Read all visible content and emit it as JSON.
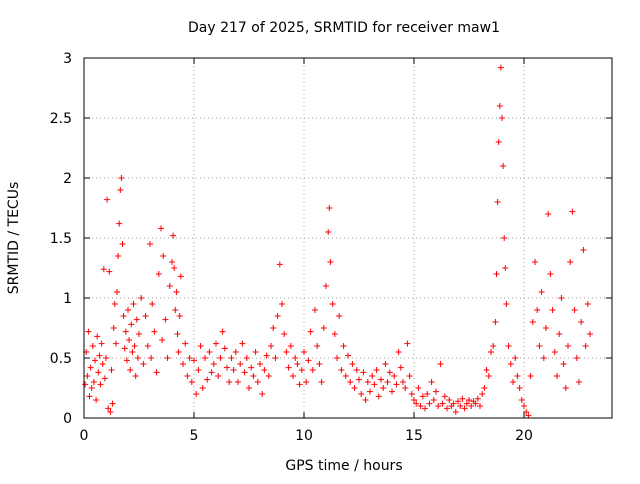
{
  "chart_data": {
    "type": "scatter",
    "title": "Day 217 of 2025, SRMTID for receiver maw1",
    "xlabel": "GPS time / hours",
    "ylabel": "SRMTID / TECUs",
    "xlim": [
      0,
      24
    ],
    "ylim": [
      0,
      3
    ],
    "xticks": [
      "0",
      "5",
      "10",
      "15",
      "20"
    ],
    "xtick_values": [
      0,
      5,
      10,
      15,
      20
    ],
    "yticks": [
      "0",
      "0.5",
      "1",
      "1.5",
      "2",
      "2.5",
      "3"
    ],
    "ytick_values": [
      0,
      0.5,
      1,
      1.5,
      2,
      2.5,
      3
    ],
    "grid": true,
    "marker": "+",
    "color": "#ff0000",
    "series": [
      {
        "name": "SRMTID",
        "points": [
          [
            0.05,
            0.28
          ],
          [
            0.1,
            0.55
          ],
          [
            0.15,
            0.35
          ],
          [
            0.2,
            0.72
          ],
          [
            0.25,
            0.18
          ],
          [
            0.3,
            0.42
          ],
          [
            0.35,
            0.25
          ],
          [
            0.4,
            0.6
          ],
          [
            0.45,
            0.3
          ],
          [
            0.5,
            0.48
          ],
          [
            0.55,
            0.15
          ],
          [
            0.6,
            0.68
          ],
          [
            0.65,
            0.38
          ],
          [
            0.7,
            0.52
          ],
          [
            0.75,
            0.28
          ],
          [
            0.8,
            0.62
          ],
          [
            0.85,
            0.45
          ],
          [
            0.9,
            1.24
          ],
          [
            0.95,
            0.33
          ],
          [
            1.0,
            0.5
          ],
          [
            1.05,
            1.82
          ],
          [
            1.1,
            0.08
          ],
          [
            1.15,
            1.22
          ],
          [
            1.2,
            0.05
          ],
          [
            1.25,
            0.4
          ],
          [
            1.3,
            0.12
          ],
          [
            1.35,
            0.75
          ],
          [
            1.4,
            0.95
          ],
          [
            1.45,
            0.62
          ],
          [
            1.5,
            1.05
          ],
          [
            1.55,
            1.35
          ],
          [
            1.6,
            1.62
          ],
          [
            1.65,
            1.9
          ],
          [
            1.7,
            2.0
          ],
          [
            1.75,
            1.45
          ],
          [
            1.8,
            0.85
          ],
          [
            1.85,
            0.58
          ],
          [
            1.9,
            0.72
          ],
          [
            1.95,
            0.48
          ],
          [
            2.0,
            0.9
          ],
          [
            2.05,
            0.65
          ],
          [
            2.1,
            0.4
          ],
          [
            2.15,
            0.78
          ],
          [
            2.2,
            0.55
          ],
          [
            2.25,
            0.95
          ],
          [
            2.3,
            0.6
          ],
          [
            2.35,
            0.35
          ],
          [
            2.4,
            0.82
          ],
          [
            2.45,
            0.5
          ],
          [
            2.5,
            0.7
          ],
          [
            2.6,
            1.0
          ],
          [
            2.7,
            0.45
          ],
          [
            2.8,
            0.85
          ],
          [
            2.9,
            0.6
          ],
          [
            3.0,
            1.45
          ],
          [
            3.05,
            0.5
          ],
          [
            3.1,
            0.95
          ],
          [
            3.2,
            0.72
          ],
          [
            3.3,
            0.38
          ],
          [
            3.4,
            1.2
          ],
          [
            3.5,
            1.58
          ],
          [
            3.55,
            0.65
          ],
          [
            3.6,
            1.35
          ],
          [
            3.7,
            0.82
          ],
          [
            3.8,
            0.5
          ],
          [
            3.9,
            1.1
          ],
          [
            4.0,
            1.3
          ],
          [
            4.05,
            1.52
          ],
          [
            4.1,
            1.25
          ],
          [
            4.15,
            0.9
          ],
          [
            4.2,
            1.05
          ],
          [
            4.25,
            0.7
          ],
          [
            4.3,
            0.55
          ],
          [
            4.35,
            0.85
          ],
          [
            4.4,
            1.18
          ],
          [
            4.5,
            0.45
          ],
          [
            4.6,
            0.62
          ],
          [
            4.7,
            0.35
          ],
          [
            4.8,
            0.5
          ],
          [
            4.9,
            0.3
          ],
          [
            5.0,
            0.48
          ],
          [
            5.1,
            0.2
          ],
          [
            5.2,
            0.4
          ],
          [
            5.3,
            0.6
          ],
          [
            5.4,
            0.25
          ],
          [
            5.5,
            0.5
          ],
          [
            5.6,
            0.32
          ],
          [
            5.7,
            0.55
          ],
          [
            5.8,
            0.38
          ],
          [
            5.9,
            0.45
          ],
          [
            6.0,
            0.62
          ],
          [
            6.1,
            0.35
          ],
          [
            6.2,
            0.5
          ],
          [
            6.3,
            0.72
          ],
          [
            6.4,
            0.58
          ],
          [
            6.5,
            0.42
          ],
          [
            6.6,
            0.3
          ],
          [
            6.7,
            0.5
          ],
          [
            6.8,
            0.4
          ],
          [
            6.9,
            0.55
          ],
          [
            7.0,
            0.3
          ],
          [
            7.1,
            0.45
          ],
          [
            7.2,
            0.62
          ],
          [
            7.3,
            0.38
          ],
          [
            7.4,
            0.5
          ],
          [
            7.5,
            0.25
          ],
          [
            7.6,
            0.42
          ],
          [
            7.7,
            0.35
          ],
          [
            7.8,
            0.55
          ],
          [
            7.9,
            0.3
          ],
          [
            8.0,
            0.45
          ],
          [
            8.1,
            0.2
          ],
          [
            8.2,
            0.4
          ],
          [
            8.3,
            0.52
          ],
          [
            8.4,
            0.35
          ],
          [
            8.5,
            0.6
          ],
          [
            8.6,
            0.75
          ],
          [
            8.7,
            0.5
          ],
          [
            8.8,
            0.85
          ],
          [
            8.9,
            1.28
          ],
          [
            9.0,
            0.95
          ],
          [
            9.1,
            0.7
          ],
          [
            9.2,
            0.55
          ],
          [
            9.3,
            0.42
          ],
          [
            9.4,
            0.6
          ],
          [
            9.5,
            0.35
          ],
          [
            9.6,
            0.5
          ],
          [
            9.7,
            0.45
          ],
          [
            9.8,
            0.28
          ],
          [
            9.9,
            0.4
          ],
          [
            10.0,
            0.55
          ],
          [
            10.1,
            0.3
          ],
          [
            10.2,
            0.48
          ],
          [
            10.3,
            0.72
          ],
          [
            10.4,
            0.4
          ],
          [
            10.5,
            0.9
          ],
          [
            10.6,
            0.6
          ],
          [
            10.7,
            0.45
          ],
          [
            10.8,
            0.3
          ],
          [
            10.9,
            0.75
          ],
          [
            11.0,
            1.1
          ],
          [
            11.1,
            1.55
          ],
          [
            11.15,
            1.75
          ],
          [
            11.2,
            1.3
          ],
          [
            11.3,
            0.95
          ],
          [
            11.4,
            0.7
          ],
          [
            11.5,
            0.5
          ],
          [
            11.6,
            0.85
          ],
          [
            11.7,
            0.4
          ],
          [
            11.8,
            0.6
          ],
          [
            11.9,
            0.35
          ],
          [
            12.0,
            0.52
          ],
          [
            12.1,
            0.3
          ],
          [
            12.2,
            0.45
          ],
          [
            12.3,
            0.25
          ],
          [
            12.4,
            0.4
          ],
          [
            12.5,
            0.32
          ],
          [
            12.6,
            0.2
          ],
          [
            12.7,
            0.38
          ],
          [
            12.8,
            0.15
          ],
          [
            12.9,
            0.3
          ],
          [
            13.0,
            0.22
          ],
          [
            13.1,
            0.35
          ],
          [
            13.2,
            0.28
          ],
          [
            13.3,
            0.4
          ],
          [
            13.4,
            0.18
          ],
          [
            13.5,
            0.32
          ],
          [
            13.6,
            0.25
          ],
          [
            13.7,
            0.45
          ],
          [
            13.8,
            0.3
          ],
          [
            13.9,
            0.38
          ],
          [
            14.0,
            0.22
          ],
          [
            14.1,
            0.35
          ],
          [
            14.2,
            0.28
          ],
          [
            14.3,
            0.55
          ],
          [
            14.4,
            0.42
          ],
          [
            14.5,
            0.3
          ],
          [
            14.6,
            0.25
          ],
          [
            14.7,
            0.62
          ],
          [
            14.8,
            0.35
          ],
          [
            14.9,
            0.2
          ],
          [
            15.0,
            0.15
          ],
          [
            15.1,
            0.12
          ],
          [
            15.2,
            0.25
          ],
          [
            15.3,
            0.1
          ],
          [
            15.4,
            0.18
          ],
          [
            15.5,
            0.08
          ],
          [
            15.6,
            0.2
          ],
          [
            15.7,
            0.12
          ],
          [
            15.8,
            0.3
          ],
          [
            15.9,
            0.15
          ],
          [
            16.0,
            0.22
          ],
          [
            16.1,
            0.1
          ],
          [
            16.2,
            0.45
          ],
          [
            16.3,
            0.12
          ],
          [
            16.4,
            0.18
          ],
          [
            16.5,
            0.08
          ],
          [
            16.6,
            0.15
          ],
          [
            16.7,
            0.1
          ],
          [
            16.8,
            0.12
          ],
          [
            16.9,
            0.05
          ],
          [
            17.0,
            0.14
          ],
          [
            17.1,
            0.1
          ],
          [
            17.2,
            0.16
          ],
          [
            17.3,
            0.08
          ],
          [
            17.4,
            0.12
          ],
          [
            17.5,
            0.15
          ],
          [
            17.6,
            0.1
          ],
          [
            17.7,
            0.14
          ],
          [
            17.8,
            0.12
          ],
          [
            17.9,
            0.16
          ],
          [
            18.0,
            0.1
          ],
          [
            18.1,
            0.2
          ],
          [
            18.2,
            0.25
          ],
          [
            18.3,
            0.4
          ],
          [
            18.4,
            0.35
          ],
          [
            18.5,
            0.55
          ],
          [
            18.6,
            0.6
          ],
          [
            18.7,
            0.8
          ],
          [
            18.75,
            1.2
          ],
          [
            18.8,
            1.8
          ],
          [
            18.85,
            2.3
          ],
          [
            18.9,
            2.6
          ],
          [
            18.95,
            2.92
          ],
          [
            19.0,
            2.5
          ],
          [
            19.05,
            2.1
          ],
          [
            19.1,
            1.5
          ],
          [
            19.15,
            1.25
          ],
          [
            19.2,
            0.95
          ],
          [
            19.3,
            0.6
          ],
          [
            19.4,
            0.45
          ],
          [
            19.5,
            0.3
          ],
          [
            19.6,
            0.5
          ],
          [
            19.7,
            0.35
          ],
          [
            19.8,
            0.25
          ],
          [
            19.9,
            0.15
          ],
          [
            20.0,
            0.1
          ],
          [
            20.1,
            0.05
          ],
          [
            20.2,
            0.02
          ],
          [
            20.3,
            0.35
          ],
          [
            20.4,
            0.8
          ],
          [
            20.5,
            1.3
          ],
          [
            20.6,
            0.9
          ],
          [
            20.7,
            0.6
          ],
          [
            20.8,
            1.05
          ],
          [
            20.9,
            0.5
          ],
          [
            21.0,
            0.75
          ],
          [
            21.1,
            1.7
          ],
          [
            21.2,
            1.2
          ],
          [
            21.3,
            0.9
          ],
          [
            21.4,
            0.55
          ],
          [
            21.5,
            0.35
          ],
          [
            21.6,
            0.7
          ],
          [
            21.7,
            1.0
          ],
          [
            21.8,
            0.45
          ],
          [
            21.9,
            0.25
          ],
          [
            22.0,
            0.6
          ],
          [
            22.1,
            1.3
          ],
          [
            22.2,
            1.72
          ],
          [
            22.3,
            0.9
          ],
          [
            22.4,
            0.5
          ],
          [
            22.5,
            0.3
          ],
          [
            22.6,
            0.8
          ],
          [
            22.7,
            1.4
          ],
          [
            22.8,
            0.6
          ],
          [
            22.9,
            0.95
          ],
          [
            23.0,
            0.7
          ]
        ]
      }
    ]
  }
}
